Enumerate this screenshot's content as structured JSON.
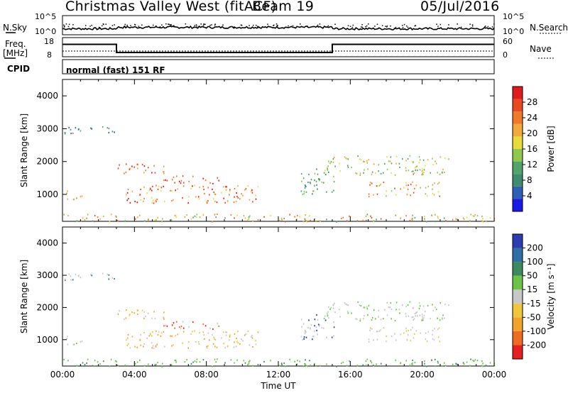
{
  "header": {
    "station_title": "Christmas Valley West (fitACF)",
    "beam": "Beam 19",
    "date": "05/Jul/2016"
  },
  "top_panels": {
    "nsky_label": "N.Sky",
    "nsky_ticks": [
      "10^5",
      "10^0"
    ],
    "nsearch_label": "N.Search",
    "nsearch_ticks": [
      "10^5",
      "10^0"
    ],
    "freq_label": "Freq.",
    "freq_unit": "[MHz]",
    "freq_ticks": [
      "18",
      "8"
    ],
    "nave_label": "Nave",
    "nave_ticks": [
      "60",
      "0"
    ],
    "cpid_label": "CPID",
    "cpid_value": "normal (fast) 151 RF"
  },
  "chart_data": [
    {
      "type": "heatmap",
      "panel": "power",
      "ylabel": "Slant Range [km]",
      "xlabel": "Time UT",
      "ylim": [
        180,
        4500
      ],
      "xlim": [
        0,
        24
      ],
      "y_ticks": [
        "1000",
        "2000",
        "3000",
        "4000"
      ],
      "x_ticks": [
        "00:00",
        "04:00",
        "08:00",
        "12:00",
        "16:00",
        "20:00",
        "00:00"
      ],
      "colorbar": {
        "label": "Power [dB]",
        "ticks": [
          "4",
          "8",
          "12",
          "16",
          "20",
          "24",
          "28"
        ],
        "colors": [
          "#1a1ae6",
          "#2f5fb3",
          "#3d8c6e",
          "#52a56a",
          "#8fc84f",
          "#e8dc3a",
          "#f0a93a",
          "#ef7a2b",
          "#e84a22",
          "#e01b1b"
        ]
      }
    },
    {
      "type": "heatmap",
      "panel": "velocity",
      "ylabel": "Slant Range [km]",
      "xlabel": "Time UT",
      "ylim": [
        180,
        4500
      ],
      "xlim": [
        0,
        24
      ],
      "y_ticks": [
        "1000",
        "2000",
        "3000",
        "4000"
      ],
      "x_ticks": [
        "00:00",
        "04:00",
        "08:00",
        "12:00",
        "16:00",
        "20:00",
        "00:00"
      ],
      "colorbar": {
        "label": "Velocity [m s⁻¹]",
        "ticks": [
          "200",
          "100",
          "50",
          "15",
          "-15",
          "-50",
          "-100",
          "-200"
        ],
        "colors": [
          "#2b3db0",
          "#2f6fa8",
          "#3c8a5e",
          "#6cc444",
          "#c8c8c8",
          "#f2c63a",
          "#f2a32c",
          "#ef6a22",
          "#e61f1f"
        ]
      }
    }
  ],
  "freq_trace": {
    "segments": [
      {
        "from": 0,
        "to": 3.0,
        "level": 14.5
      },
      {
        "from": 3.0,
        "to": 15.0,
        "level": 10.2
      },
      {
        "from": 15.0,
        "to": 24,
        "level": 14.5
      }
    ]
  },
  "x_axis_title": "Time UT"
}
